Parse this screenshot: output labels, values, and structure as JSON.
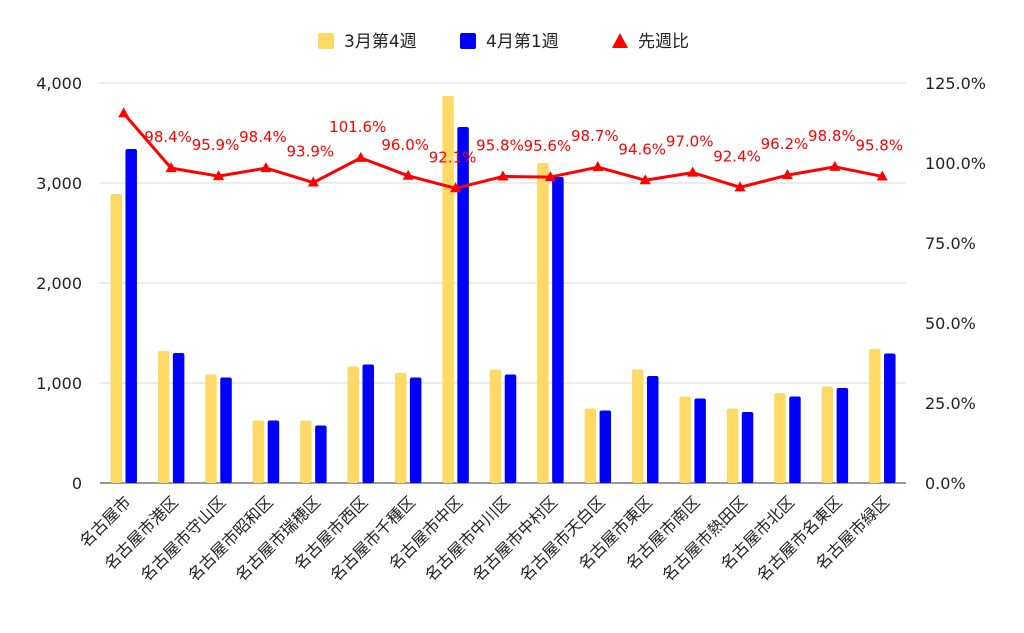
{
  "chart_data": {
    "type": "bar",
    "categories": [
      "名古屋市",
      "名古屋市港区",
      "名古屋市守山区",
      "名古屋市昭和区",
      "名古屋市瑞穂区",
      "名古屋市西区",
      "名古屋市千種区",
      "名古屋市中区",
      "名古屋市中川区",
      "名古屋市中村区",
      "名古屋市天白区",
      "名古屋市東区",
      "名古屋市南区",
      "名古屋市熱田区",
      "名古屋市北区",
      "名古屋市名東区",
      "名古屋市緑区"
    ],
    "series": [
      {
        "name": "3月第4週",
        "type": "bar",
        "axis": "left",
        "color": "#ffd966",
        "values": [
          2890,
          1320,
          1085,
          625,
          625,
          1165,
          1100,
          3870,
          1135,
          3200,
          745,
          1135,
          865,
          745,
          900,
          965,
          1340
        ]
      },
      {
        "name": "4月第1週",
        "type": "bar",
        "axis": "left",
        "color": "#0000ff",
        "values": [
          3340,
          1300,
          1055,
          625,
          575,
          1185,
          1055,
          3560,
          1085,
          3060,
          725,
          1070,
          845,
          710,
          865,
          950,
          1295
        ]
      },
      {
        "name": "先週比",
        "type": "line",
        "axis": "right",
        "color": "#ff0000",
        "values": [
          115.5,
          98.4,
          95.9,
          98.4,
          93.9,
          101.6,
          96.0,
          92.1,
          95.8,
          95.6,
          98.7,
          94.6,
          97.0,
          92.4,
          96.2,
          98.8,
          95.8
        ],
        "labels": [
          "",
          "98.4%",
          "95.9%",
          "98.4%",
          "93.9%",
          "101.6%",
          "96.0%",
          "92.1%",
          "95.8%",
          "95.6%",
          "98.7%",
          "94.6%",
          "97.0%",
          "92.4%",
          "96.2%",
          "98.8%",
          "95.8%"
        ]
      }
    ],
    "left_axis": {
      "ylim": [
        0,
        4000
      ],
      "ticks": [
        0,
        1000,
        2000,
        3000,
        4000
      ],
      "tick_labels": [
        "0",
        "1,000",
        "2,000",
        "3,000",
        "4,000"
      ]
    },
    "right_axis": {
      "ylim": [
        0,
        125
      ],
      "ticks": [
        0,
        25,
        50,
        75,
        100,
        125
      ],
      "tick_labels": [
        "0.0%",
        "25.0%",
        "50.0%",
        "75.0%",
        "100.0%",
        "125.0%"
      ]
    },
    "grid": true,
    "legend": "top-center"
  }
}
